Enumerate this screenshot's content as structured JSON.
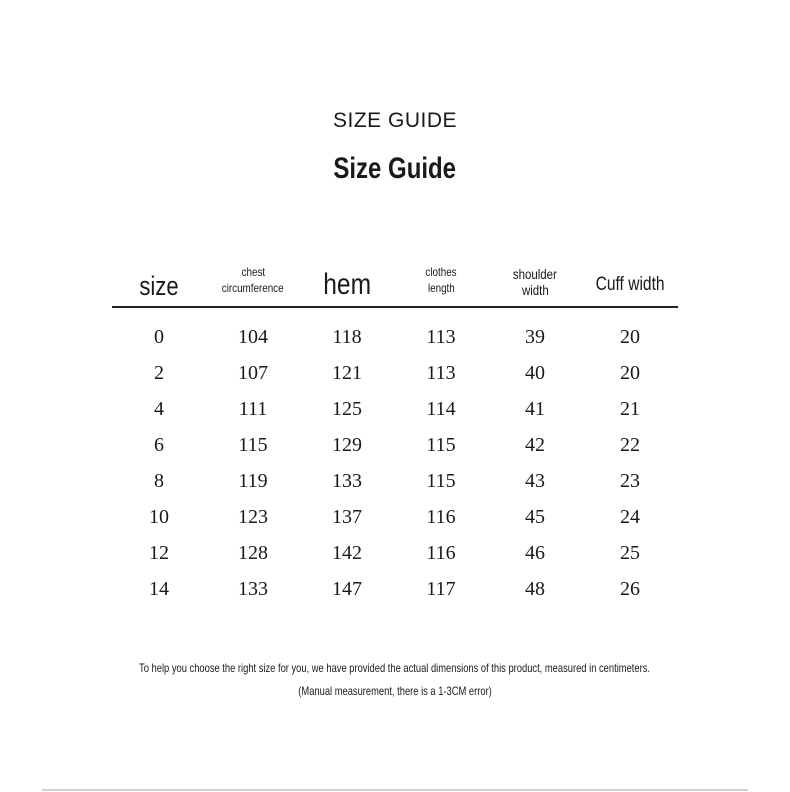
{
  "title_upper": "SIZE GUIDE",
  "title": "Size Guide",
  "headers": [
    {
      "lines": [
        "size"
      ],
      "size": 27
    },
    {
      "lines": [
        "chest",
        "circumference"
      ],
      "size": 12
    },
    {
      "lines": [
        "hem"
      ],
      "size": 30
    },
    {
      "lines": [
        "clothes",
        "length"
      ],
      "size": 12
    },
    {
      "lines": [
        "shoulder",
        "width"
      ],
      "size": 14
    },
    {
      "lines": [
        "Cuff width"
      ],
      "size": 19
    }
  ],
  "rows": [
    [
      "0",
      "104",
      "118",
      "113",
      "39",
      "20"
    ],
    [
      "2",
      "107",
      "121",
      "113",
      "40",
      "20"
    ],
    [
      "4",
      "111",
      "125",
      "114",
      "41",
      "21"
    ],
    [
      "6",
      "115",
      "129",
      "115",
      "42",
      "22"
    ],
    [
      "8",
      "119",
      "133",
      "115",
      "43",
      "23"
    ],
    [
      "10",
      "123",
      "137",
      "116",
      "45",
      "24"
    ],
    [
      "12",
      "128",
      "142",
      "116",
      "46",
      "25"
    ],
    [
      "14",
      "133",
      "147",
      "117",
      "48",
      "26"
    ]
  ],
  "note": "To help you choose the right size for you, we have provided the actual dimensions of this product, measured in centimeters.",
  "note2": "(Manual measurement, there is a 1-3CM error)"
}
